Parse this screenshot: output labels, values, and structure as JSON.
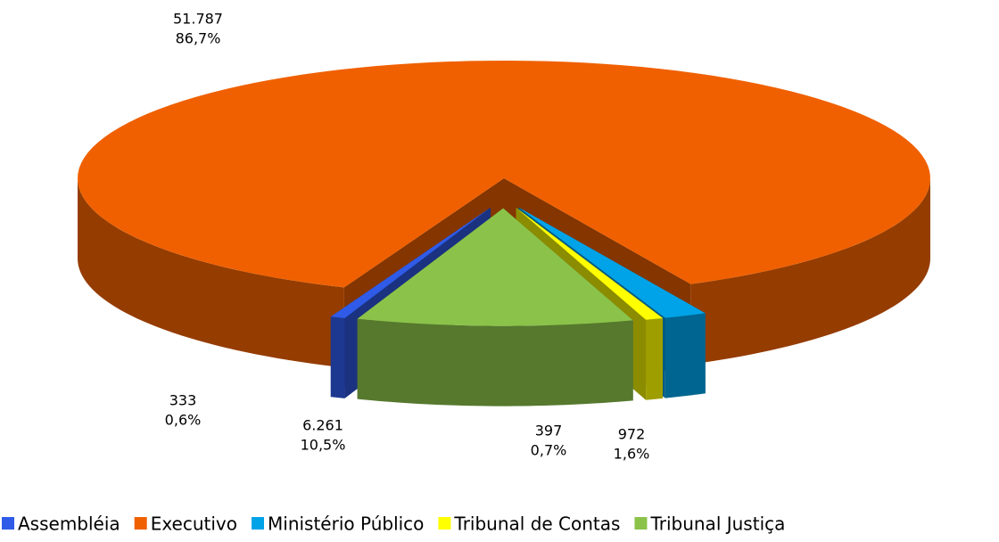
{
  "chart_data": {
    "type": "pie3d",
    "categories": [
      "Assembléia",
      "Executivo",
      "Ministério Público",
      "Tribunal de Contas",
      "Tribunal Justiça"
    ],
    "values": [
      333,
      51787,
      972,
      397,
      6261
    ],
    "value_labels": [
      "333",
      "51.787",
      "972",
      "397",
      "6.261"
    ],
    "percentages": [
      0.6,
      86.7,
      1.6,
      0.7,
      10.5
    ],
    "percentage_labels": [
      "0,6%",
      "86,7%",
      "1,6%",
      "0,7%",
      "10,5%"
    ],
    "colors": [
      "#2f5be8",
      "#f06000",
      "#00a3e8",
      "#ffff00",
      "#8bc34a"
    ],
    "legend": "bottom"
  }
}
